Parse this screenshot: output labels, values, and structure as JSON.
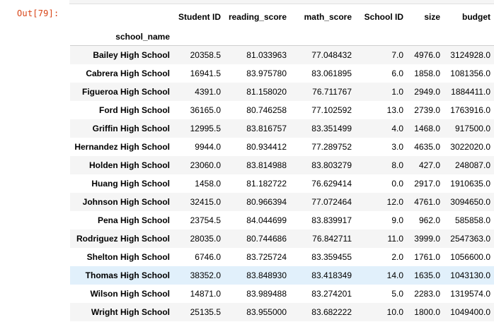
{
  "cell": {
    "prompt": "Out[79]:"
  },
  "table": {
    "index_name": "school_name",
    "columns": [
      "Student ID",
      "reading_score",
      "math_score",
      "School ID",
      "size",
      "budget"
    ],
    "highlighted_row": 12,
    "rows": [
      {
        "name": "Bailey High School",
        "values": [
          "20358.5",
          "81.033963",
          "77.048432",
          "7.0",
          "4976.0",
          "3124928.0"
        ]
      },
      {
        "name": "Cabrera High School",
        "values": [
          "16941.5",
          "83.975780",
          "83.061895",
          "6.0",
          "1858.0",
          "1081356.0"
        ]
      },
      {
        "name": "Figueroa High School",
        "values": [
          "4391.0",
          "81.158020",
          "76.711767",
          "1.0",
          "2949.0",
          "1884411.0"
        ]
      },
      {
        "name": "Ford High School",
        "values": [
          "36165.0",
          "80.746258",
          "77.102592",
          "13.0",
          "2739.0",
          "1763916.0"
        ]
      },
      {
        "name": "Griffin High School",
        "values": [
          "12995.5",
          "83.816757",
          "83.351499",
          "4.0",
          "1468.0",
          "917500.0"
        ]
      },
      {
        "name": "Hernandez High School",
        "values": [
          "9944.0",
          "80.934412",
          "77.289752",
          "3.0",
          "4635.0",
          "3022020.0"
        ]
      },
      {
        "name": "Holden High School",
        "values": [
          "23060.0",
          "83.814988",
          "83.803279",
          "8.0",
          "427.0",
          "248087.0"
        ]
      },
      {
        "name": "Huang High School",
        "values": [
          "1458.0",
          "81.182722",
          "76.629414",
          "0.0",
          "2917.0",
          "1910635.0"
        ]
      },
      {
        "name": "Johnson High School",
        "values": [
          "32415.0",
          "80.966394",
          "77.072464",
          "12.0",
          "4761.0",
          "3094650.0"
        ]
      },
      {
        "name": "Pena High School",
        "values": [
          "23754.5",
          "84.044699",
          "83.839917",
          "9.0",
          "962.0",
          "585858.0"
        ]
      },
      {
        "name": "Rodriguez High School",
        "values": [
          "28035.0",
          "80.744686",
          "76.842711",
          "11.0",
          "3999.0",
          "2547363.0"
        ]
      },
      {
        "name": "Shelton High School",
        "values": [
          "6746.0",
          "83.725724",
          "83.359455",
          "2.0",
          "1761.0",
          "1056600.0"
        ]
      },
      {
        "name": "Thomas High School",
        "values": [
          "38352.0",
          "83.848930",
          "83.418349",
          "14.0",
          "1635.0",
          "1043130.0"
        ]
      },
      {
        "name": "Wilson High School",
        "values": [
          "14871.0",
          "83.989488",
          "83.274201",
          "5.0",
          "2283.0",
          "1319574.0"
        ]
      },
      {
        "name": "Wright High School",
        "values": [
          "25135.5",
          "83.955000",
          "83.682222",
          "10.0",
          "1800.0",
          "1049400.0"
        ]
      }
    ]
  }
}
